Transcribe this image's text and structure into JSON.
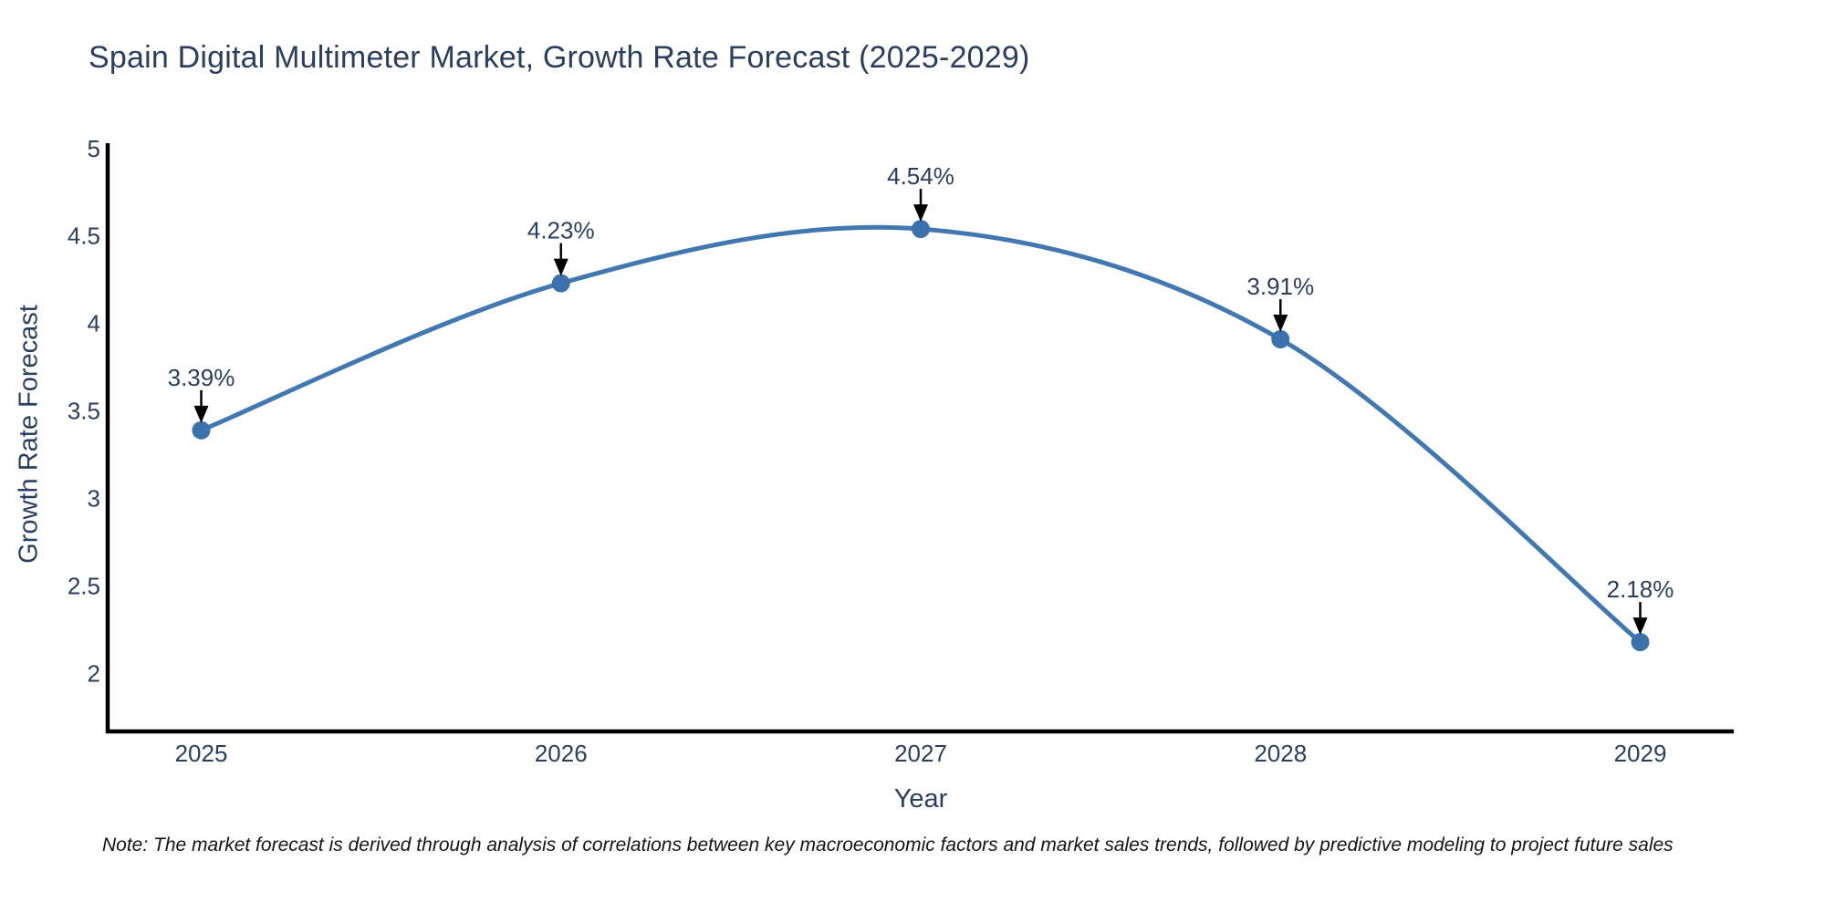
{
  "page": {
    "background": "#ffffff"
  },
  "chart_data": {
    "type": "line",
    "title": "Spain Digital Multimeter Market, Growth Rate Forecast (2025-2029)",
    "xlabel": "Year",
    "ylabel": "Growth Rate Forecast",
    "x": [
      2025,
      2026,
      2027,
      2028,
      2029
    ],
    "series": [
      {
        "name": "Growth Rate Forecast",
        "values": [
          3.39,
          4.23,
          4.54,
          3.91,
          2.18
        ]
      }
    ],
    "point_labels": [
      "3.39%",
      "4.23%",
      "4.54%",
      "3.91%",
      "2.18%"
    ],
    "x_tick_labels": [
      "2025",
      "2026",
      "2027",
      "2028",
      "2029"
    ],
    "y_ticks": [
      5,
      4.5,
      4,
      3.5,
      3,
      2.5,
      2
    ],
    "xlim": [
      2024.74,
      2029.26
    ],
    "ylim": [
      1.67,
      5.03
    ],
    "line_shape": "spline",
    "grid": false,
    "legend_position": "none",
    "colors": {
      "line": "#4278b2",
      "marker": "#3b72ad",
      "axis_line": "#000000",
      "text": "#2a3f5f",
      "annotation_arrow": "#000000"
    }
  },
  "footer": {
    "note": "Note: The market forecast is derived through analysis of correlations between key macroeconomic factors and market sales trends, followed by predictive modeling to project future sales"
  }
}
